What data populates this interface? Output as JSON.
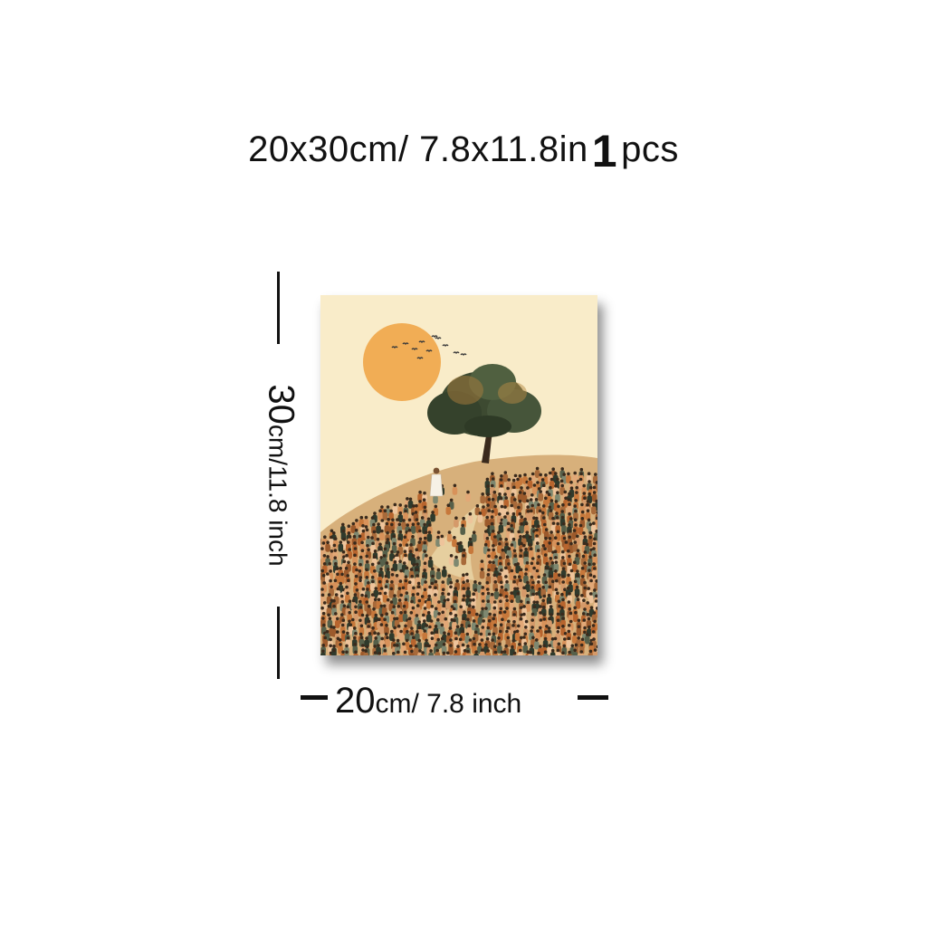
{
  "header": {
    "size_text": "20x30cm/ 7.8x11.8in",
    "quantity": "1",
    "quantity_unit": "pcs"
  },
  "dimensions": {
    "height_number": "30",
    "height_unit_text": "cm/11.8 inch",
    "width_number": "20",
    "width_unit_text": "cm/ 7.8 inch"
  },
  "artwork": {
    "subject": "crowd-on-hill-with-tree-and-sun",
    "colors": {
      "sky": "#f9ecc9",
      "sun": "#f1ad55",
      "tree": "#3d4a31",
      "crowd_warm": "#c7783b",
      "crowd_dark": "#2f3a2c"
    }
  }
}
